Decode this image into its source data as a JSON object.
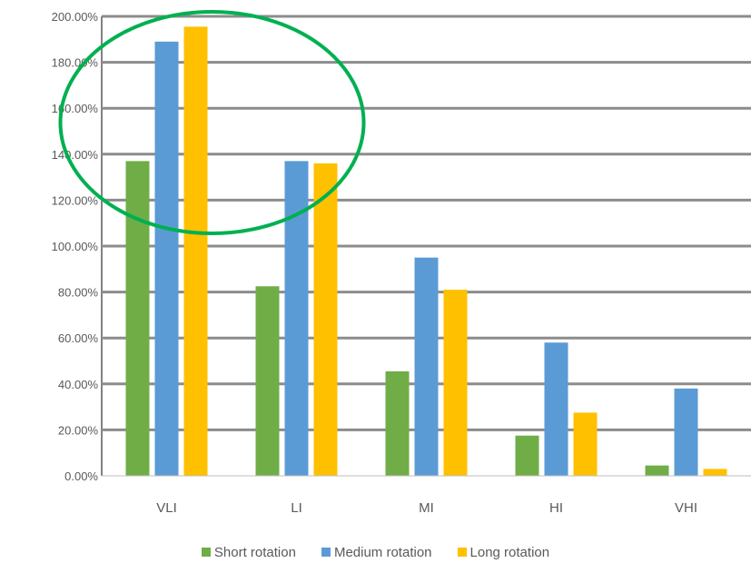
{
  "chart_data": {
    "type": "bar",
    "title": "",
    "xlabel": "",
    "ylabel": "",
    "categories": [
      "VLI",
      "LI",
      "MI",
      "HI",
      "VHI"
    ],
    "ylim": [
      0,
      200
    ],
    "yticks": [
      0,
      20,
      40,
      60,
      80,
      100,
      120,
      140,
      160,
      180,
      200
    ],
    "ytick_labels": [
      "0.00%",
      "20.00%",
      "40.00%",
      "60.00%",
      "80.00%",
      "100.00%",
      "120.00%",
      "140.00%",
      "160.00%",
      "180.00%",
      "200.00%"
    ],
    "grid": true,
    "legend_position": "bottom",
    "series": [
      {
        "name": "Short rotation",
        "color": "#70ad47",
        "values": [
          137,
          82.5,
          45.5,
          17.5,
          4.5
        ]
      },
      {
        "name": "Medium rotation",
        "color": "#5b9bd5",
        "values": [
          189,
          137,
          95,
          58,
          38
        ]
      },
      {
        "name": "Long rotation",
        "color": "#ffc000",
        "values": [
          195.5,
          136,
          81,
          27.5,
          3
        ]
      }
    ],
    "annotation": {
      "shape": "ellipse",
      "color": "#00b050",
      "highlights": [
        "VLI"
      ]
    }
  }
}
